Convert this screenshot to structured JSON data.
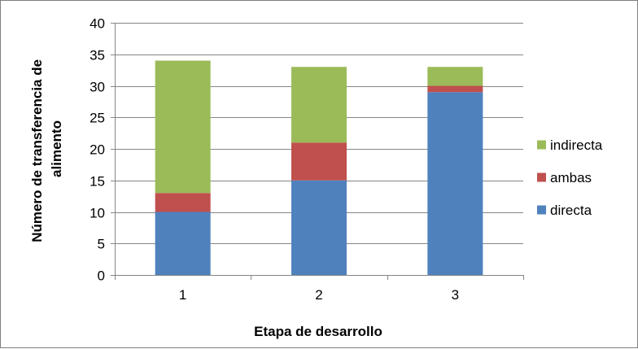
{
  "chart_data": {
    "type": "bar",
    "stacked": true,
    "categories": [
      "1",
      "2",
      "3"
    ],
    "series": [
      {
        "name": "directa",
        "values": [
          10,
          15,
          29
        ],
        "color": "#4F81BD"
      },
      {
        "name": "ambas",
        "values": [
          3,
          6,
          1
        ],
        "color": "#C0504D"
      },
      {
        "name": "indirecta",
        "values": [
          21,
          12,
          3
        ],
        "color": "#9BBB59"
      }
    ],
    "title": "",
    "xlabel": "Etapa de desarrollo",
    "ylabel": "Número de transferencia de alimento",
    "ylabel_lines": [
      "Número de transferencia de",
      "alimento"
    ],
    "ylim": [
      0,
      40
    ],
    "yticks": [
      0,
      5,
      10,
      15,
      20,
      25,
      30,
      35,
      40
    ],
    "grid": true,
    "legend": "right",
    "legend_order": [
      "indirecta",
      "ambas",
      "directa"
    ],
    "grid_color": "#868686",
    "axis_color": "#868686"
  }
}
